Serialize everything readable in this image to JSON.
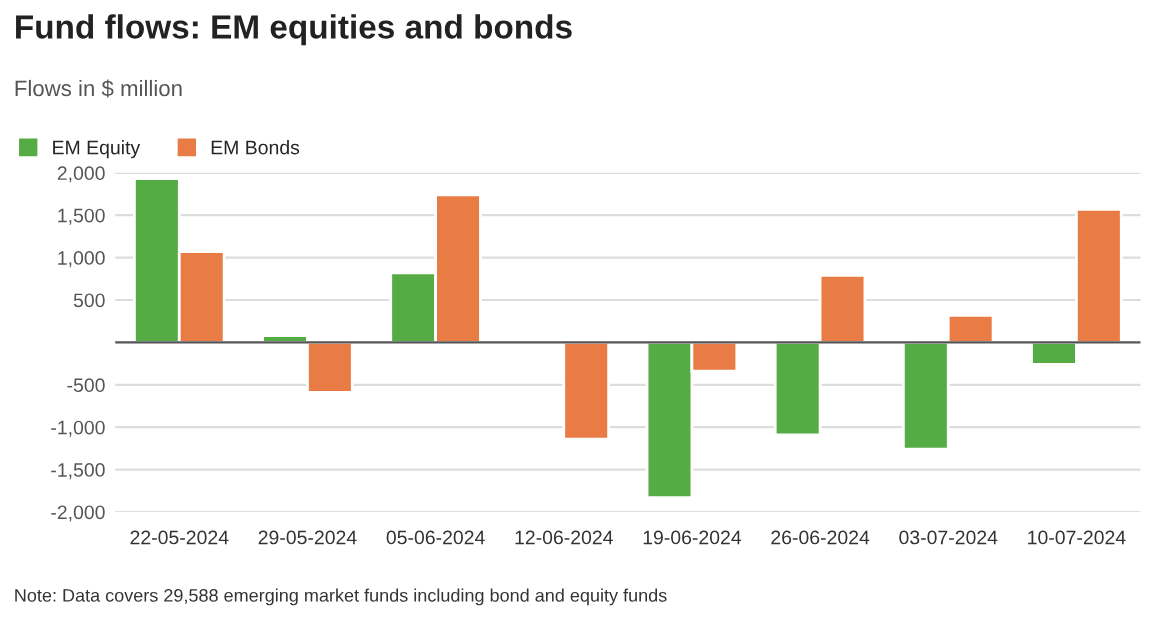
{
  "chart_data": {
    "type": "bar",
    "title": "Fund flows: EM equities and bonds",
    "subtitle": "Flows in $ million",
    "categories": [
      "22-05-2024",
      "29-05-2024",
      "05-06-2024",
      "12-06-2024",
      "19-06-2024",
      "26-06-2024",
      "03-07-2024",
      "10-07-2024"
    ],
    "series": [
      {
        "name": "EM Equity",
        "color": "#55ab44",
        "values": [
          1930,
          80,
          820,
          -20,
          -1830,
          -1090,
          -1260,
          -260
        ]
      },
      {
        "name": "EM Bonds",
        "color": "#e97c45",
        "values": [
          1070,
          -590,
          1740,
          -1140,
          -340,
          790,
          320,
          1570
        ]
      }
    ],
    "ylim": [
      -2000,
      2000
    ],
    "yticks": [
      {
        "value": 2000,
        "label": "2,000"
      },
      {
        "value": 1500,
        "label": "1,500"
      },
      {
        "value": 1000,
        "label": "1,000"
      },
      500,
      {
        "value": -500,
        "label": "-500"
      },
      {
        "value": -1000,
        "label": "-1,000"
      },
      {
        "value": -1500,
        "label": "-1,500"
      },
      {
        "value": -2000,
        "label": "-2,000"
      }
    ],
    "grid": "y",
    "legend": "top left",
    "annotations": [
      "Note: Data covers 29,588 emerging market funds including bond and equity funds"
    ]
  }
}
